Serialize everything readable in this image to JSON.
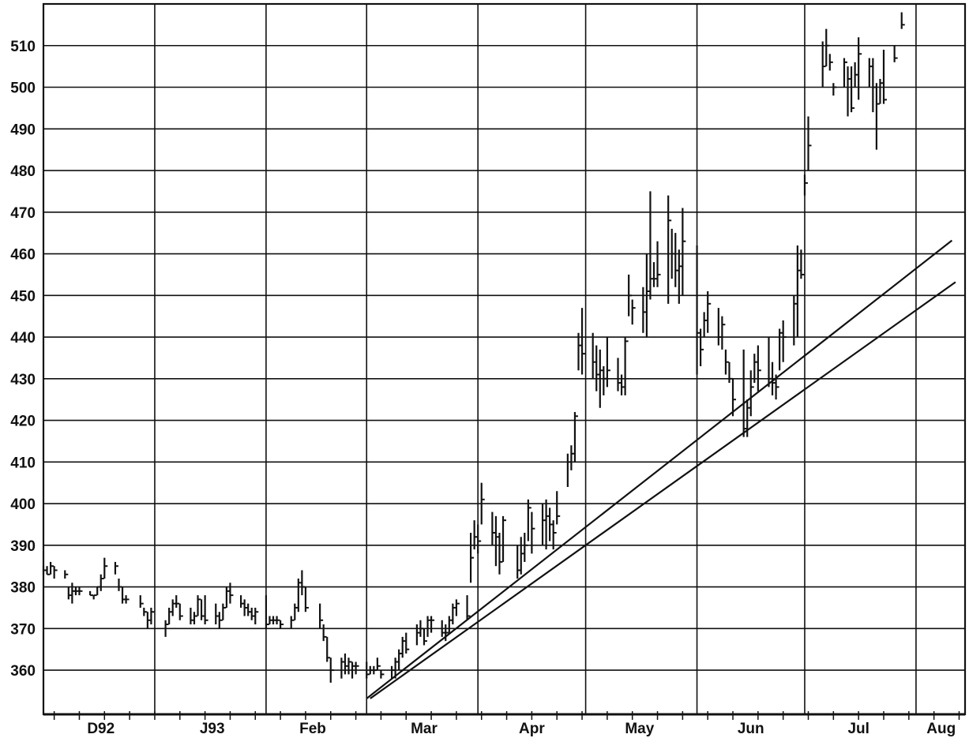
{
  "chart_data": {
    "type": "ohlc",
    "title": "",
    "xlabel": "",
    "ylabel": "",
    "ylim": [
      349.4,
      520
    ],
    "xlim": [
      "1992-12-01",
      "1993-08-14"
    ],
    "grid": true,
    "y_ticks": [
      360,
      370,
      380,
      390,
      400,
      410,
      420,
      430,
      440,
      450,
      460,
      470,
      480,
      490,
      500,
      510
    ],
    "x_gridlines": [
      "1992-12-01",
      "1993-01-01",
      "1993-02-01",
      "1993-03-01",
      "1993-04-01",
      "1993-05-01",
      "1993-06-01",
      "1993-07-01",
      "1993-08-01"
    ],
    "x_labels": [
      {
        "label": "D92",
        "date": "1992-12-17"
      },
      {
        "label": "J93",
        "date": "1993-01-17"
      },
      {
        "label": "Feb",
        "date": "1993-02-14"
      },
      {
        "label": "Mar",
        "date": "1993-03-17"
      },
      {
        "label": "Apr",
        "date": "1993-04-16"
      },
      {
        "label": "May",
        "date": "1993-05-16"
      },
      {
        "label": "Jun",
        "date": "1993-06-16"
      },
      {
        "label": "Jul",
        "date": "1993-07-16"
      },
      {
        "label": "Aug",
        "date": "1993-08-08"
      }
    ],
    "bar_fields": [
      "date",
      "high",
      "low",
      "close"
    ],
    "bars": [
      [
        "1992-12-01",
        385,
        383,
        384
      ],
      [
        "1992-12-02",
        385,
        383,
        383
      ],
      [
        "1992-12-03",
        386,
        383,
        385
      ],
      [
        "1992-12-04",
        385,
        382,
        384
      ],
      [
        "1992-12-07",
        384,
        382,
        383
      ],
      [
        "1992-12-08",
        380,
        377,
        378
      ],
      [
        "1992-12-09",
        381,
        376,
        379
      ],
      [
        "1992-12-10",
        380,
        378,
        379
      ],
      [
        "1992-12-11",
        380,
        378,
        379
      ],
      [
        "1992-12-14",
        379,
        378,
        378
      ],
      [
        "1992-12-15",
        378,
        377,
        378
      ],
      [
        "1992-12-16",
        380,
        378,
        380
      ],
      [
        "1992-12-17",
        383,
        379,
        382
      ],
      [
        "1992-12-18",
        387,
        382,
        385
      ],
      [
        "1992-12-21",
        386,
        383,
        385
      ],
      [
        "1992-12-22",
        382,
        379,
        380
      ],
      [
        "1992-12-23",
        380,
        376,
        377
      ],
      [
        "1992-12-24",
        378,
        376,
        377
      ],
      [
        "1992-12-28",
        378,
        375,
        376
      ],
      [
        "1992-12-29",
        375,
        373,
        374
      ],
      [
        "1992-12-30",
        374,
        370,
        372
      ],
      [
        "1992-12-31",
        375,
        371,
        374
      ],
      [
        "1993-01-04",
        372,
        368,
        371
      ],
      [
        "1993-01-05",
        375,
        371,
        374
      ],
      [
        "1993-01-06",
        377,
        373,
        376
      ],
      [
        "1993-01-07",
        378,
        375,
        376
      ],
      [
        "1993-01-08",
        376,
        372,
        373
      ],
      [
        "1993-01-11",
        375,
        371,
        372
      ],
      [
        "1993-01-12",
        374,
        371,
        373
      ],
      [
        "1993-01-13",
        378,
        373,
        377
      ],
      [
        "1993-01-14",
        377,
        372,
        373
      ],
      [
        "1993-01-15",
        378,
        371,
        372
      ],
      [
        "1993-01-18",
        376,
        371,
        373
      ],
      [
        "1993-01-19",
        374,
        370,
        372
      ],
      [
        "1993-01-20",
        376,
        372,
        375
      ],
      [
        "1993-01-21",
        380,
        375,
        379
      ],
      [
        "1993-01-22",
        381,
        376,
        378
      ],
      [
        "1993-01-25",
        378,
        375,
        376
      ],
      [
        "1993-01-26",
        377,
        373,
        375
      ],
      [
        "1993-01-27",
        376,
        373,
        374
      ],
      [
        "1993-01-28",
        375,
        372,
        373
      ],
      [
        "1993-01-29",
        375,
        371,
        374
      ],
      [
        "1993-02-01",
        378,
        370,
        371
      ],
      [
        "1993-02-02",
        373,
        371,
        372
      ],
      [
        "1993-02-03",
        373,
        371,
        372
      ],
      [
        "1993-02-04",
        373,
        371,
        372
      ],
      [
        "1993-02-05",
        372,
        370,
        371
      ],
      [
        "1993-02-08",
        373,
        370,
        372
      ],
      [
        "1993-02-09",
        376,
        372,
        375
      ],
      [
        "1993-02-10",
        382,
        374,
        381
      ],
      [
        "1993-02-11",
        384,
        378,
        380
      ],
      [
        "1993-02-12",
        380,
        374,
        375
      ],
      [
        "1993-02-16",
        376,
        370,
        372
      ],
      [
        "1993-02-17",
        371,
        367,
        368
      ],
      [
        "1993-02-18",
        368,
        362,
        363
      ],
      [
        "1993-02-19",
        363,
        357,
        360
      ],
      [
        "1993-02-22",
        363,
        358,
        362
      ],
      [
        "1993-02-23",
        364,
        359,
        361
      ],
      [
        "1993-02-24",
        363,
        359,
        362
      ],
      [
        "1993-02-25",
        362,
        358,
        361
      ],
      [
        "1993-02-26",
        362,
        359,
        361
      ],
      [
        "1993-03-01",
        362,
        358,
        359
      ],
      [
        "1993-03-02",
        361,
        359,
        360
      ],
      [
        "1993-03-03",
        361,
        359,
        360
      ],
      [
        "1993-03-04",
        363,
        360,
        361
      ],
      [
        "1993-03-05",
        360,
        358,
        359
      ],
      [
        "1993-03-08",
        361,
        358,
        360
      ],
      [
        "1993-03-09",
        363,
        358,
        362
      ],
      [
        "1993-03-10",
        365,
        360,
        364
      ],
      [
        "1993-03-11",
        368,
        363,
        367
      ],
      [
        "1993-03-12",
        369,
        364,
        365
      ],
      [
        "1993-03-15",
        371,
        366,
        369
      ],
      [
        "1993-03-16",
        372,
        368,
        370
      ],
      [
        "1993-03-17",
        370,
        366,
        367
      ],
      [
        "1993-03-18",
        373,
        368,
        372
      ],
      [
        "1993-03-19",
        373,
        369,
        372
      ],
      [
        "1993-03-22",
        372,
        368,
        369
      ],
      [
        "1993-03-23",
        371,
        367,
        369
      ],
      [
        "1993-03-24",
        373,
        369,
        372
      ],
      [
        "1993-03-25",
        376,
        371,
        375
      ],
      [
        "1993-03-26",
        377,
        373,
        376
      ],
      [
        "1993-03-29",
        378,
        372,
        373
      ],
      [
        "1993-03-30",
        393,
        381,
        387
      ],
      [
        "1993-03-31",
        396,
        389,
        392
      ],
      [
        "1993-04-01",
        395,
        388,
        391
      ],
      [
        "1993-04-02",
        405,
        395,
        401
      ],
      [
        "1993-04-05",
        398,
        390,
        393
      ],
      [
        "1993-04-06",
        397,
        385,
        392
      ],
      [
        "1993-04-07",
        393,
        383,
        386
      ],
      [
        "1993-04-08",
        397,
        386,
        396
      ],
      [
        "1993-04-12",
        390,
        382,
        384
      ],
      [
        "1993-04-13",
        392,
        383,
        388
      ],
      [
        "1993-04-14",
        393,
        386,
        390
      ],
      [
        "1993-04-15",
        401,
        391,
        399
      ],
      [
        "1993-04-16",
        398,
        388,
        394
      ],
      [
        "1993-04-19",
        400,
        390,
        396
      ],
      [
        "1993-04-20",
        401,
        389,
        397
      ],
      [
        "1993-04-21",
        399,
        391,
        395
      ],
      [
        "1993-04-22",
        396,
        389,
        393
      ],
      [
        "1993-04-23",
        403,
        395,
        397
      ],
      [
        "1993-04-26",
        412,
        404,
        410
      ],
      [
        "1993-04-27",
        414,
        408,
        412
      ],
      [
        "1993-04-28",
        422,
        410,
        421
      ],
      [
        "1993-04-29",
        441,
        432,
        438
      ],
      [
        "1993-04-30",
        447,
        431,
        436
      ],
      [
        "1993-05-03",
        441,
        430,
        434
      ],
      [
        "1993-05-04",
        438,
        427,
        431
      ],
      [
        "1993-05-05",
        437,
        423,
        432
      ],
      [
        "1993-05-06",
        433,
        426,
        430
      ],
      [
        "1993-05-07",
        440,
        428,
        432
      ],
      [
        "1993-05-10",
        435,
        427,
        429
      ],
      [
        "1993-05-11",
        431,
        426,
        428
      ],
      [
        "1993-05-12",
        440,
        426,
        439
      ],
      [
        "1993-05-13",
        455,
        445,
        450
      ],
      [
        "1993-05-14",
        449,
        443,
        447
      ],
      [
        "1993-05-17",
        452,
        441,
        446
      ],
      [
        "1993-05-18",
        460,
        440,
        451
      ],
      [
        "1993-05-19",
        475,
        449,
        454
      ],
      [
        "1993-05-20",
        458,
        452,
        454
      ],
      [
        "1993-05-21",
        463,
        452,
        455
      ],
      [
        "1993-05-24",
        474,
        448,
        468
      ],
      [
        "1993-05-25",
        466,
        454,
        460
      ],
      [
        "1993-05-26",
        465,
        452,
        456
      ],
      [
        "1993-05-27",
        461,
        448,
        457
      ],
      [
        "1993-05-28",
        471,
        450,
        463
      ],
      [
        "1993-06-01",
        462,
        431,
        441
      ],
      [
        "1993-06-02",
        442,
        433,
        437
      ],
      [
        "1993-06-03",
        446,
        440,
        444
      ],
      [
        "1993-06-04",
        451,
        441,
        448
      ],
      [
        "1993-06-07",
        447,
        438,
        440
      ],
      [
        "1993-06-08",
        445,
        437,
        443
      ],
      [
        "1993-06-09",
        437,
        431,
        434
      ],
      [
        "1993-06-10",
        434,
        429,
        430
      ],
      [
        "1993-06-11",
        430,
        421,
        425
      ],
      [
        "1993-06-14",
        437,
        416,
        418
      ],
      [
        "1993-06-15",
        425,
        416,
        423
      ],
      [
        "1993-06-16",
        432,
        421,
        428
      ],
      [
        "1993-06-17",
        436,
        429,
        434
      ],
      [
        "1993-06-18",
        438,
        427,
        432
      ],
      [
        "1993-06-21",
        440,
        428,
        430
      ],
      [
        "1993-06-22",
        434,
        426,
        429
      ],
      [
        "1993-06-23",
        431,
        425,
        428
      ],
      [
        "1993-06-24",
        442,
        432,
        441
      ],
      [
        "1993-06-25",
        444,
        434,
        440
      ],
      [
        "1993-06-28",
        450,
        438,
        448
      ],
      [
        "1993-06-29",
        462,
        440,
        456
      ],
      [
        "1993-06-30",
        461,
        454,
        455
      ],
      [
        "1993-07-01",
        479,
        474,
        477
      ],
      [
        "1993-07-02",
        493,
        480,
        486
      ],
      [
        "1993-07-06",
        511,
        500,
        505
      ],
      [
        "1993-07-07",
        514,
        505,
        510
      ],
      [
        "1993-07-08",
        508,
        504,
        506
      ],
      [
        "1993-07-09",
        501,
        498,
        500
      ],
      [
        "1993-07-12",
        507,
        500,
        506
      ],
      [
        "1993-07-13",
        505,
        493,
        502
      ],
      [
        "1993-07-14",
        505,
        494,
        495
      ],
      [
        "1993-07-15",
        506,
        500,
        503
      ],
      [
        "1993-07-16",
        512,
        497,
        508
      ],
      [
        "1993-07-19",
        507,
        500,
        505
      ],
      [
        "1993-07-20",
        507,
        494,
        500
      ],
      [
        "1993-07-21",
        501,
        485,
        496
      ],
      [
        "1993-07-22",
        502,
        496,
        501
      ],
      [
        "1993-07-23",
        509,
        496,
        497
      ],
      [
        "1993-07-26",
        510,
        506,
        507
      ],
      [
        "1993-07-28",
        518,
        514,
        515
      ]
    ],
    "trendlines": [
      {
        "start": [
          "1993-03-01",
          353.2
        ],
        "end": [
          "1993-08-11",
          463.2
        ]
      },
      {
        "start": [
          "1993-03-02",
          353.2
        ],
        "end": [
          "1993-08-12",
          453.2
        ]
      }
    ],
    "colors": {
      "ink": "#111111",
      "background": "#ffffff"
    }
  }
}
